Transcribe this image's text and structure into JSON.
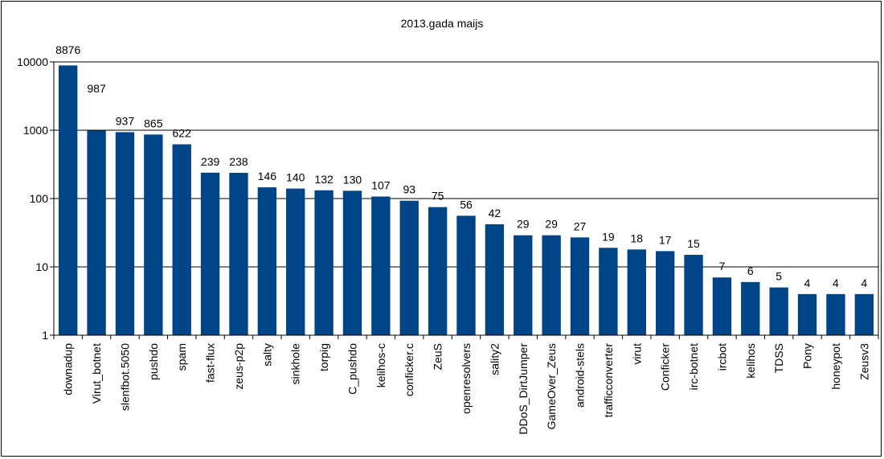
{
  "chart_data": {
    "type": "bar",
    "title": "2013.gada maijs",
    "xlabel": "",
    "ylabel": "",
    "yscale": "log",
    "ylim": [
      1,
      10000
    ],
    "yticks": [
      "1",
      "10",
      "100",
      "1000",
      "10000"
    ],
    "grid": true,
    "legend": "none",
    "bar_color": "#004488",
    "categories": [
      "downadup",
      "Virut_botnet",
      "slenfbot.5050",
      "pushdo",
      "spam",
      "fast-flux",
      "zeus-p2p",
      "salty",
      "sinkhole",
      "torpig",
      "C_pushdo",
      "kelihos-c",
      "conficker.c",
      "ZeuS",
      "openresolvers",
      "sality2",
      "DDoS_DirtJumper",
      "GameOver_Zeus",
      "android-stels",
      "trafficconverter",
      "virut",
      "Conficker",
      "irc-botnet",
      "ircbot",
      "kelihos",
      "TDSS",
      "Pony",
      "honeypot",
      "Zeusv3"
    ],
    "values": [
      8876,
      987,
      937,
      865,
      622,
      239,
      238,
      146,
      140,
      132,
      130,
      107,
      93,
      75,
      56,
      42,
      29,
      29,
      27,
      19,
      18,
      17,
      15,
      7,
      6,
      5,
      4,
      4,
      4
    ]
  }
}
